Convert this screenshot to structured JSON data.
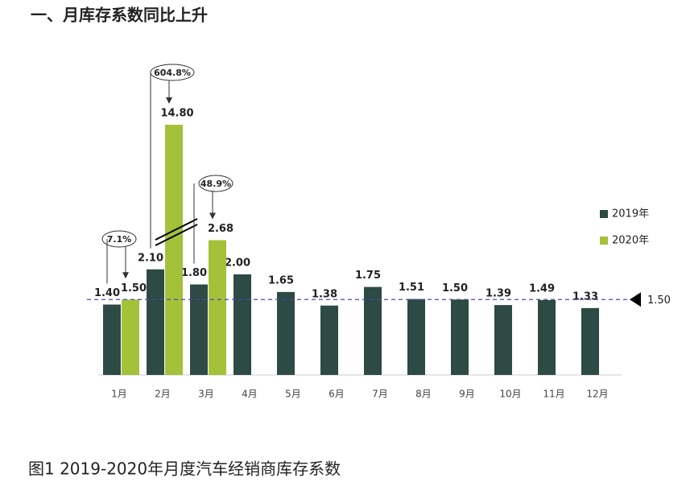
{
  "title": "一、月库存系数同比上升",
  "chart_data": {
    "type": "bar",
    "categories": [
      "1月",
      "2月",
      "3月",
      "4月",
      "5月",
      "6月",
      "7月",
      "8月",
      "9月",
      "10月",
      "11月",
      "12月"
    ],
    "series": [
      {
        "name": "2019年",
        "color": "#2d4a44",
        "values": [
          1.4,
          2.1,
          1.8,
          2.0,
          1.65,
          1.38,
          1.75,
          1.51,
          1.5,
          1.39,
          1.49,
          1.33
        ],
        "value_labels": [
          "1.40",
          "2.10",
          "1.80",
          "2.00",
          "1.65",
          "1.38",
          "1.75",
          "1.51",
          "1.50",
          "1.39",
          "1.49",
          "1.33"
        ]
      },
      {
        "name": "2020年",
        "color": "#a4c13a",
        "values": [
          1.5,
          14.8,
          2.68,
          null,
          null,
          null,
          null,
          null,
          null,
          null,
          null,
          null
        ],
        "value_labels": [
          "1.50",
          "14.80",
          "2.68",
          null,
          null,
          null,
          null,
          null,
          null,
          null,
          null,
          null
        ]
      }
    ],
    "reference_line": {
      "value": 1.5,
      "label": "1.50"
    },
    "annotations": [
      "7.1%",
      "604.8%",
      "48.9%"
    ],
    "legend": "right"
  },
  "caption": "图1  2019-2020年月度汽车经销商库存系数"
}
